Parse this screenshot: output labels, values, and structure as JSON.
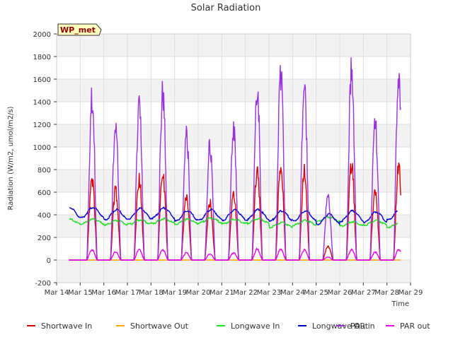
{
  "chart_data": {
    "type": "line",
    "title": "Solar Radiation",
    "site_label": "WP_met",
    "xlabel": "Time",
    "ylabel": "Radiation (W/m2, umol/m2/s)",
    "ylim": [
      -200,
      2000
    ],
    "xlim_days": [
      "Mar 14",
      "Mar 29"
    ],
    "yticks": [
      "-200",
      "0",
      "200",
      "400",
      "600",
      "800",
      "1000",
      "1200",
      "1400",
      "1600",
      "1800",
      "2000"
    ],
    "xticks": [
      "Mar 14",
      "Mar 15",
      "Mar 16",
      "Mar 17",
      "Mar 18",
      "Mar 19",
      "Mar 20",
      "Mar 21",
      "Mar 22",
      "Mar 23",
      "Mar 24",
      "Mar 25",
      "Mar 26",
      "Mar 27",
      "Mar 28",
      "Mar 29"
    ],
    "grid": true,
    "legend_position": "bottom",
    "days": [
      "Mar 15",
      "Mar 16",
      "Mar 17",
      "Mar 18",
      "Mar 19",
      "Mar 20",
      "Mar 21",
      "Mar 22",
      "Mar 23",
      "Mar 24",
      "Mar 25",
      "Mar 26",
      "Mar 27",
      "Mar 28"
    ],
    "series": [
      {
        "name": "Shortwave In",
        "color": "#dd0000",
        "daily_peak": [
          800,
          680,
          790,
          820,
          620,
          560,
          640,
          870,
          920,
          860,
          130,
          940,
          660,
          900
        ]
      },
      {
        "name": "Shortwave Out",
        "color": "#ffa500",
        "daily_peak": [
          0,
          0,
          0,
          0,
          0,
          0,
          0,
          0,
          0,
          0,
          0,
          0,
          0,
          0
        ]
      },
      {
        "name": "Longwave In",
        "color": "#22dd22",
        "daily_mean": [
          340,
          330,
          335,
          345,
          340,
          350,
          340,
          345,
          310,
          330,
          360,
          320,
          330,
          310
        ]
      },
      {
        "name": "Longwave Out",
        "color": "#0000cc",
        "daily_mean": [
          420,
          400,
          410,
          415,
          390,
          400,
          400,
          400,
          390,
          390,
          360,
          390,
          380,
          400
        ]
      },
      {
        "name": "PAR in",
        "color": "#9933dd",
        "daily_peak": [
          1580,
          1340,
          1560,
          1630,
          1260,
          1120,
          1260,
          1690,
          1790,
          1670,
          630,
          1880,
          1330,
          1780
        ]
      },
      {
        "name": "PAR out",
        "color": "#ee00ee",
        "daily_peak": [
          100,
          80,
          100,
          100,
          70,
          60,
          70,
          105,
          105,
          100,
          30,
          100,
          75,
          100
        ]
      }
    ]
  }
}
